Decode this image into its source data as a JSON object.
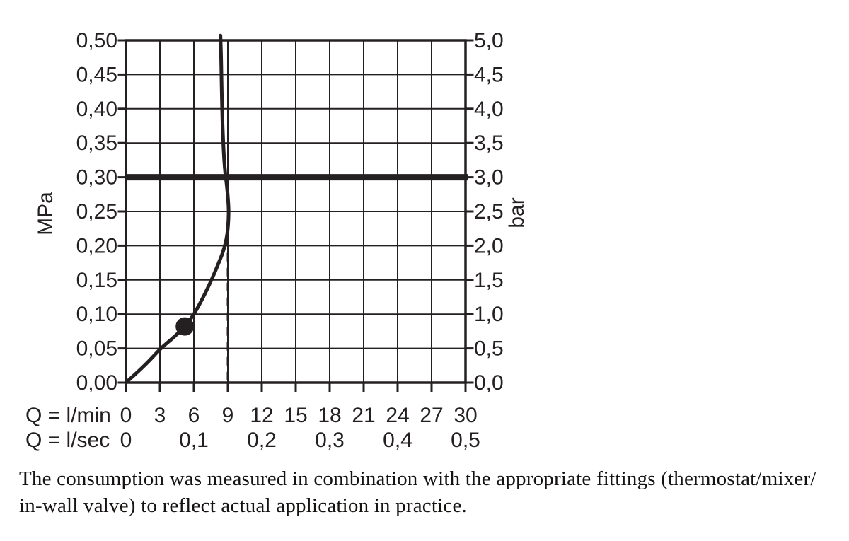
{
  "figure": {
    "caption_line1": "The consumption was measured in combination with the appropriate fittings (thermostat/mixer/",
    "caption_line2": "in-wall valve) to reflect actual application in practice."
  },
  "chart_data": {
    "type": "line",
    "grid": true,
    "ink_color": "#242021",
    "background": "#ffffff",
    "x_axis": {
      "range_lmin": [
        0,
        30
      ],
      "rows": [
        {
          "label": "Q = l/min",
          "ticks": [
            "0",
            "3",
            "6",
            "9",
            "12",
            "15",
            "18",
            "21",
            "24",
            "27",
            "30"
          ],
          "tick_values_lmin": [
            0,
            3,
            6,
            9,
            12,
            15,
            18,
            21,
            24,
            27,
            30
          ]
        },
        {
          "label": "Q = l/sec",
          "ticks": [
            "0",
            "0,1",
            "0,2",
            "0,3",
            "0,4",
            "0,5"
          ],
          "tick_values_lmin": [
            0,
            6,
            12,
            18,
            24,
            30
          ]
        }
      ]
    },
    "y_axis_left": {
      "unit": "MPa",
      "range_mpa": [
        0,
        0.5
      ],
      "ticks": [
        "0,50",
        "0,45",
        "0,40",
        "0,35",
        "0,30",
        "0,25",
        "0,20",
        "0,15",
        "0,10",
        "0,05",
        "0,00"
      ]
    },
    "y_axis_right": {
      "unit": "bar",
      "range_bar": [
        0,
        5
      ],
      "ticks": [
        "5,0",
        "4,5",
        "4,0",
        "3,5",
        "3,0",
        "2,5",
        "2,0",
        "1,5",
        "1,0",
        "0,5",
        "0,0"
      ]
    },
    "series": [
      {
        "name": "flow-rate-curve",
        "points_lmin_mpa": [
          [
            0,
            0
          ],
          [
            1,
            0.015
          ],
          [
            2,
            0.031
          ],
          [
            3.1,
            0.05
          ],
          [
            4.2,
            0.066
          ],
          [
            5.2,
            0.082
          ],
          [
            6,
            0.1
          ],
          [
            6.8,
            0.124
          ],
          [
            7.5,
            0.148
          ],
          [
            8.1,
            0.171
          ],
          [
            8.55,
            0.19
          ],
          [
            8.85,
            0.208
          ],
          [
            9.0,
            0.225
          ],
          [
            9.07,
            0.25
          ],
          [
            9.0,
            0.272
          ],
          [
            8.88,
            0.292
          ],
          [
            8.78,
            0.305
          ],
          [
            8.68,
            0.325
          ],
          [
            8.6,
            0.35
          ],
          [
            8.52,
            0.385
          ],
          [
            8.47,
            0.42
          ],
          [
            8.43,
            0.455
          ],
          [
            8.4,
            0.48
          ],
          [
            8.35,
            0.507
          ]
        ]
      }
    ],
    "horizontal_reference_line_mpa": 0.3,
    "dashed_guide_line": {
      "x_lmin": 9,
      "from_mpa": 0,
      "to_mpa": 0.211
    },
    "operating_point": {
      "x_lmin": 5.2,
      "y_mpa": 0.082
    }
  }
}
